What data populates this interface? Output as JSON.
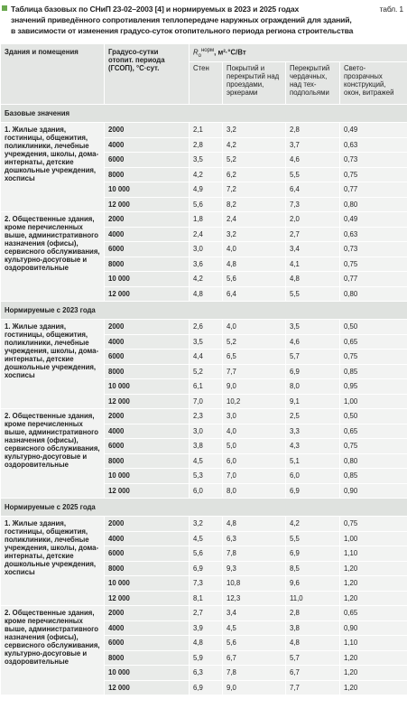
{
  "title_lines": [
    "Таблица базовых по СНиП 23-02–2003 [4] и нормируемых в 2023 и 2025 годах",
    "значений приведённого сопротивления теплопередаче наружных ограждений для зданий,",
    "в зависимости от изменения градусо-суток отопительного периода региона строительства"
  ],
  "table_number": "табл. 1",
  "header": {
    "buildings": "Здания и помещения",
    "gsop": "Градусо-сутки отопит. периода (ГСОП), °С·сут.",
    "r_symbol": "R",
    "r_sub": "о",
    "r_sup": "норм",
    "r_unit": ", м²·°С/Вт",
    "columns": [
      "Стен",
      "Покрытий и перекрытий над проездами, эркерами",
      "Перекрытий чердачных, над тех-подпольями",
      "Свето-прозрачных конструкций, окон, витражей"
    ]
  },
  "sections": [
    {
      "title": "Базовые значения",
      "groups": [
        {
          "label": "1. Жилые здания, гостиницы, общежития, поликлиники, лечебные учреждения, школы, дома-интернаты, детские дошкольные учреждения, хосписы",
          "rows": [
            [
              "2000",
              "2,1",
              "3,2",
              "2,8",
              "0,49"
            ],
            [
              "4000",
              "2,8",
              "4,2",
              "3,7",
              "0,63"
            ],
            [
              "6000",
              "3,5",
              "5,2",
              "4,6",
              "0,73"
            ],
            [
              "8000",
              "4,2",
              "6,2",
              "5,5",
              "0,75"
            ],
            [
              "10 000",
              "4,9",
              "7,2",
              "6,4",
              "0,77"
            ],
            [
              "12 000",
              "5,6",
              "8,2",
              "7,3",
              "0,80"
            ]
          ]
        },
        {
          "label": "2. Общественные здания, кроме перечисленных выше, административного назначения (офисы), сервисного обслуживания, культурно-досуговые и оздоровительные",
          "rows": [
            [
              "2000",
              "1,8",
              "2,4",
              "2,0",
              "0,49"
            ],
            [
              "4000",
              "2,4",
              "3,2",
              "2,7",
              "0,63"
            ],
            [
              "6000",
              "3,0",
              "4,0",
              "3,4",
              "0,73"
            ],
            [
              "8000",
              "3,6",
              "4,8",
              "4,1",
              "0,75"
            ],
            [
              "10 000",
              "4,2",
              "5,6",
              "4,8",
              "0,77"
            ],
            [
              "12 000",
              "4,8",
              "6,4",
              "5,5",
              "0,80"
            ]
          ]
        }
      ]
    },
    {
      "title": "Нормируемые с 2023 года",
      "groups": [
        {
          "label": "1. Жилые здания, гостиницы, общежития, поликлиники, лечебные учреждения, школы, дома-интернаты, детские дошкольные учреждения, хосписы",
          "rows": [
            [
              "2000",
              "2,6",
              "4,0",
              "3,5",
              "0,50"
            ],
            [
              "4000",
              "3,5",
              "5,2",
              "4,6",
              "0,65"
            ],
            [
              "6000",
              "4,4",
              "6,5",
              "5,7",
              "0,75"
            ],
            [
              "8000",
              "5,2",
              "7,7",
              "6,9",
              "0,85"
            ],
            [
              "10 000",
              "6,1",
              "9,0",
              "8,0",
              "0,95"
            ],
            [
              "12 000",
              "7,0",
              "10,2",
              "9,1",
              "1,00"
            ]
          ]
        },
        {
          "label": "2. Общественные здания, кроме перечисленных выше, административного назначения (офисы), сервисного обслуживания, культурно-досуговые и оздоровительные",
          "rows": [
            [
              "2000",
              "2,3",
              "3,0",
              "2,5",
              "0,50"
            ],
            [
              "4000",
              "3,0",
              "4,0",
              "3,3",
              "0,65"
            ],
            [
              "6000",
              "3,8",
              "5,0",
              "4,3",
              "0,75"
            ],
            [
              "8000",
              "4,5",
              "6,0",
              "5,1",
              "0,80"
            ],
            [
              "10 000",
              "5,3",
              "7,0",
              "6,0",
              "0,85"
            ],
            [
              "12 000",
              "6,0",
              "8,0",
              "6,9",
              "0,90"
            ]
          ]
        }
      ]
    },
    {
      "title": "Нормируемые с 2025 года",
      "groups": [
        {
          "label": "1. Жилые здания, гостиницы, общежития, поликлиники, лечебные учреждения, школы, дома-интернаты, детские дошкольные учреждения, хосписы",
          "rows": [
            [
              "2000",
              "3,2",
              "4,8",
              "4,2",
              "0,75"
            ],
            [
              "4000",
              "4,5",
              "6,3",
              "5,5",
              "1,00"
            ],
            [
              "6000",
              "5,6",
              "7,8",
              "6,9",
              "1,10"
            ],
            [
              "8000",
              "6,9",
              "9,3",
              "8,5",
              "1,20"
            ],
            [
              "10 000",
              "7,3",
              "10,8",
              "9,6",
              "1,20"
            ],
            [
              "12 000",
              "8,1",
              "12,3",
              "11,0",
              "1,20"
            ]
          ]
        },
        {
          "label": "2. Общественные здания, кроме перечисленных выше, административного назначения (офисы), сервисного обслуживания, культурно-досуговые и оздоровительные",
          "rows": [
            [
              "2000",
              "2,7",
              "3,4",
              "2,8",
              "0,65"
            ],
            [
              "4000",
              "3,9",
              "4,5",
              "3,8",
              "0,90"
            ],
            [
              "6000",
              "4,8",
              "5,6",
              "4,8",
              "1,10"
            ],
            [
              "8000",
              "5,9",
              "6,7",
              "5,7",
              "1,20"
            ],
            [
              "10 000",
              "6,3",
              "7,8",
              "6,7",
              "1,20"
            ],
            [
              "12 000",
              "6,9",
              "9,0",
              "7,7",
              "1,20"
            ]
          ]
        }
      ]
    }
  ]
}
